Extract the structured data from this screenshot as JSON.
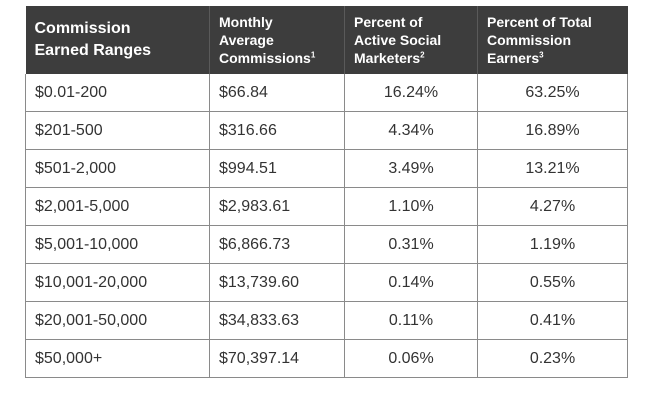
{
  "table": {
    "headers": [
      {
        "line1": "Commission",
        "line2": "Earned Ranges",
        "line3": "",
        "sup": ""
      },
      {
        "line1": "Monthly",
        "line2": "Average",
        "line3": "Commissions",
        "sup": "1"
      },
      {
        "line1": "Percent of",
        "line2": "Active Social",
        "line3": "Marketers",
        "sup": "2"
      },
      {
        "line1": "Percent of Total",
        "line2": "Commission",
        "line3": "Earners",
        "sup": "3"
      }
    ],
    "rows": [
      [
        "$0.01-200",
        "$66.84",
        "16.24%",
        "63.25%"
      ],
      [
        "$201-500",
        "$316.66",
        "4.34%",
        "16.89%"
      ],
      [
        "$501-2,000",
        "$994.51",
        "3.49%",
        "13.21%"
      ],
      [
        "$2,001-5,000",
        "$2,983.61",
        "1.10%",
        "4.27%"
      ],
      [
        "$5,001-10,000",
        "$6,866.73",
        "0.31%",
        "1.19%"
      ],
      [
        "$10,001-20,000",
        "$13,739.60",
        "0.14%",
        "0.55%"
      ],
      [
        "$20,001-50,000",
        "$34,833.63",
        "0.11%",
        "0.41%"
      ],
      [
        "$50,000+",
        "$70,397.14",
        "0.06%",
        "0.23%"
      ]
    ]
  }
}
